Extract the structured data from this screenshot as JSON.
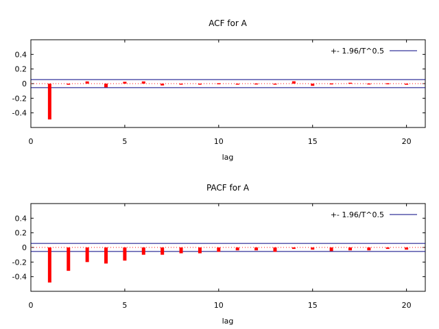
{
  "chart_data": [
    {
      "type": "bar",
      "title": "ACF for A",
      "xlabel": "lag",
      "ylabel": "",
      "xlim": [
        0,
        21
      ],
      "ylim": [
        -0.6,
        0.6
      ],
      "x_ticks": [
        "0",
        "5",
        "10",
        "15",
        "20"
      ],
      "y_ticks": [
        "0.4",
        "0.2",
        "0",
        "-0.2",
        "-0.4"
      ],
      "legend": {
        "label": "+- 1.96/T^0.5",
        "position": "top-right"
      },
      "confidence_band": 0.055,
      "series": [
        {
          "lags": [
            1,
            2,
            3,
            4,
            5,
            6,
            7,
            8,
            9,
            10,
            11,
            12,
            13,
            14,
            15,
            16,
            17,
            18,
            19,
            20
          ],
          "values": [
            -0.49,
            -0.015,
            0.03,
            -0.05,
            0.025,
            0.03,
            -0.025,
            -0.008,
            -0.005,
            0.005,
            -0.003,
            0.002,
            -0.008,
            0.032,
            -0.03,
            0.003,
            0.012,
            0.002,
            0.005,
            -0.015
          ]
        }
      ],
      "colors": {
        "bars": "#ff0000",
        "band": "#000080",
        "zero": "#ff0000",
        "frame": "#000000"
      }
    },
    {
      "type": "bar",
      "title": "PACF for A",
      "xlabel": "lag",
      "ylabel": "",
      "xlim": [
        0,
        21
      ],
      "ylim": [
        -0.6,
        0.6
      ],
      "x_ticks": [
        "0",
        "5",
        "10",
        "15",
        "20"
      ],
      "y_ticks": [
        "0.4",
        "0.2",
        "0",
        "-0.2",
        "-0.4"
      ],
      "legend": {
        "label": "+- 1.96/T^0.5",
        "position": "top-right"
      },
      "confidence_band": 0.055,
      "series": [
        {
          "lags": [
            1,
            2,
            3,
            4,
            5,
            6,
            7,
            8,
            9,
            10,
            11,
            12,
            13,
            14,
            15,
            16,
            17,
            18,
            19,
            20
          ],
          "values": [
            -0.48,
            -0.32,
            -0.2,
            -0.22,
            -0.18,
            -0.1,
            -0.1,
            -0.08,
            -0.08,
            -0.06,
            -0.04,
            -0.04,
            -0.06,
            -0.02,
            -0.03,
            -0.05,
            -0.04,
            -0.04,
            -0.02,
            -0.03
          ]
        }
      ],
      "colors": {
        "bars": "#ff0000",
        "band": "#000080",
        "zero": "#ff0000",
        "frame": "#000000"
      }
    }
  ]
}
